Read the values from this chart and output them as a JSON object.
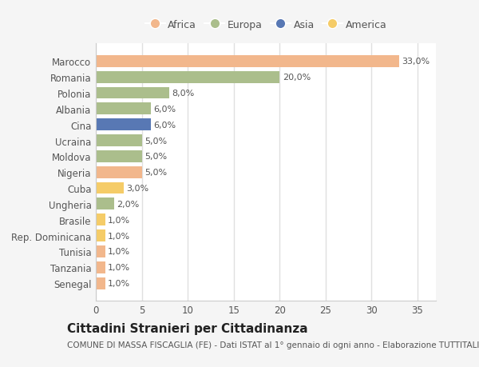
{
  "categories": [
    "Marocco",
    "Romania",
    "Polonia",
    "Albania",
    "Cina",
    "Ucraina",
    "Moldova",
    "Nigeria",
    "Cuba",
    "Ungheria",
    "Brasile",
    "Rep. Dominicana",
    "Tunisia",
    "Tanzania",
    "Senegal"
  ],
  "values": [
    33.0,
    20.0,
    8.0,
    6.0,
    6.0,
    5.0,
    5.0,
    5.0,
    3.0,
    2.0,
    1.0,
    1.0,
    1.0,
    1.0,
    1.0
  ],
  "labels": [
    "33,0%",
    "20,0%",
    "8,0%",
    "6,0%",
    "6,0%",
    "5,0%",
    "5,0%",
    "5,0%",
    "3,0%",
    "2,0%",
    "1,0%",
    "1,0%",
    "1,0%",
    "1,0%",
    "1,0%"
  ],
  "colors": [
    "#F2B78C",
    "#ABBE8C",
    "#ABBE8C",
    "#ABBE8C",
    "#5878B4",
    "#ABBE8C",
    "#ABBE8C",
    "#F2B78C",
    "#F5CC68",
    "#ABBE8C",
    "#F5CC68",
    "#F5CC68",
    "#F2B78C",
    "#F2B78C",
    "#F2B78C"
  ],
  "legend_labels": [
    "Africa",
    "Europa",
    "Asia",
    "America"
  ],
  "legend_colors": [
    "#F2B78C",
    "#ABBE8C",
    "#5878B4",
    "#F5CC68"
  ],
  "title": "Cittadini Stranieri per Cittadinanza",
  "subtitle": "COMUNE DI MASSA FISCAGLIA (FE) - Dati ISTAT al 1° gennaio di ogni anno - Elaborazione TUTTITALIA.IT",
  "xlim": [
    0,
    37
  ],
  "xticks": [
    0,
    5,
    10,
    15,
    20,
    25,
    30,
    35
  ],
  "plot_bg_color": "#ffffff",
  "fig_bg_color": "#f5f5f5",
  "bar_height": 0.75,
  "label_fontsize": 8,
  "tick_fontsize": 8.5,
  "title_fontsize": 11,
  "subtitle_fontsize": 7.5
}
